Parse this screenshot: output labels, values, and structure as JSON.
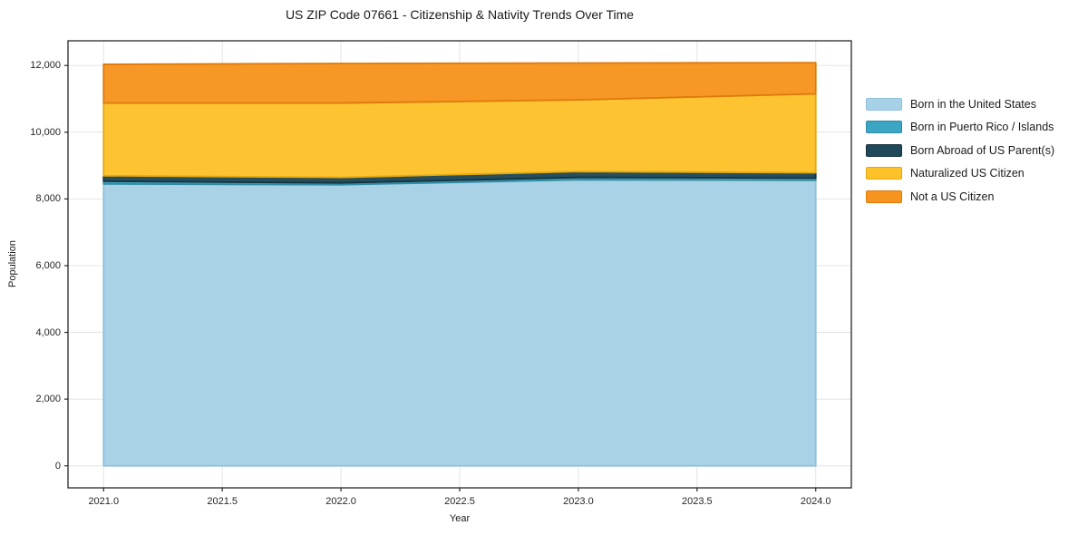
{
  "figure": {
    "title": "US ZIP Code 07661 - Citizenship & Nativity Trends Over Time"
  },
  "chart_data": {
    "type": "area",
    "stacked": true,
    "title": "US ZIP Code 07661 - Citizenship & Nativity Trends Over Time",
    "xlabel": "Year",
    "ylabel": "Population",
    "x": [
      2021,
      2022,
      2023,
      2024
    ],
    "xlim": [
      2020.85,
      2024.15
    ],
    "ylim": [
      -660,
      12740
    ],
    "x_ticks": [
      2021.0,
      2021.5,
      2022.0,
      2022.5,
      2023.0,
      2023.5,
      2024.0
    ],
    "x_tick_labels": [
      "2021.0",
      "2021.5",
      "2022.0",
      "2022.5",
      "2023.0",
      "2023.5",
      "2024.0"
    ],
    "y_ticks": [
      0,
      2000,
      4000,
      6000,
      8000,
      10000,
      12000
    ],
    "y_tick_labels": [
      "0",
      "2,000",
      "4,000",
      "6,000",
      "8,000",
      "10,000",
      "12,000"
    ],
    "grid": true,
    "legend_position": "right-outside",
    "series": [
      {
        "name": "Born in the United States",
        "values": [
          8450,
          8425,
          8575,
          8560
        ],
        "fill": "#a6d1e6",
        "edge": "#8fc0da"
      },
      {
        "name": "Born in Puerto Rico / Islands",
        "values": [
          80,
          55,
          70,
          65
        ],
        "fill": "#3ba6c3",
        "edge": "#2f8ba4"
      },
      {
        "name": "Born Abroad of US Parent(s)",
        "values": [
          165,
          165,
          175,
          160
        ],
        "fill": "#1f4858",
        "edge": "#16323d"
      },
      {
        "name": "Naturalized US Citizen",
        "values": [
          2180,
          2230,
          2150,
          2365
        ],
        "fill": "#fdc129",
        "edge": "#e5a90f"
      },
      {
        "name": "Not a US Citizen",
        "values": [
          1160,
          1185,
          1105,
          935
        ],
        "fill": "#f7941f",
        "edge": "#dd7a0b"
      }
    ],
    "totals": [
      12035,
      12060,
      12075,
      12085
    ]
  },
  "colors": {
    "background": "#ffffff",
    "spine": "#262626",
    "grid": "#e4e4e4",
    "tick": "#262626",
    "text": "#1a1a1a"
  }
}
